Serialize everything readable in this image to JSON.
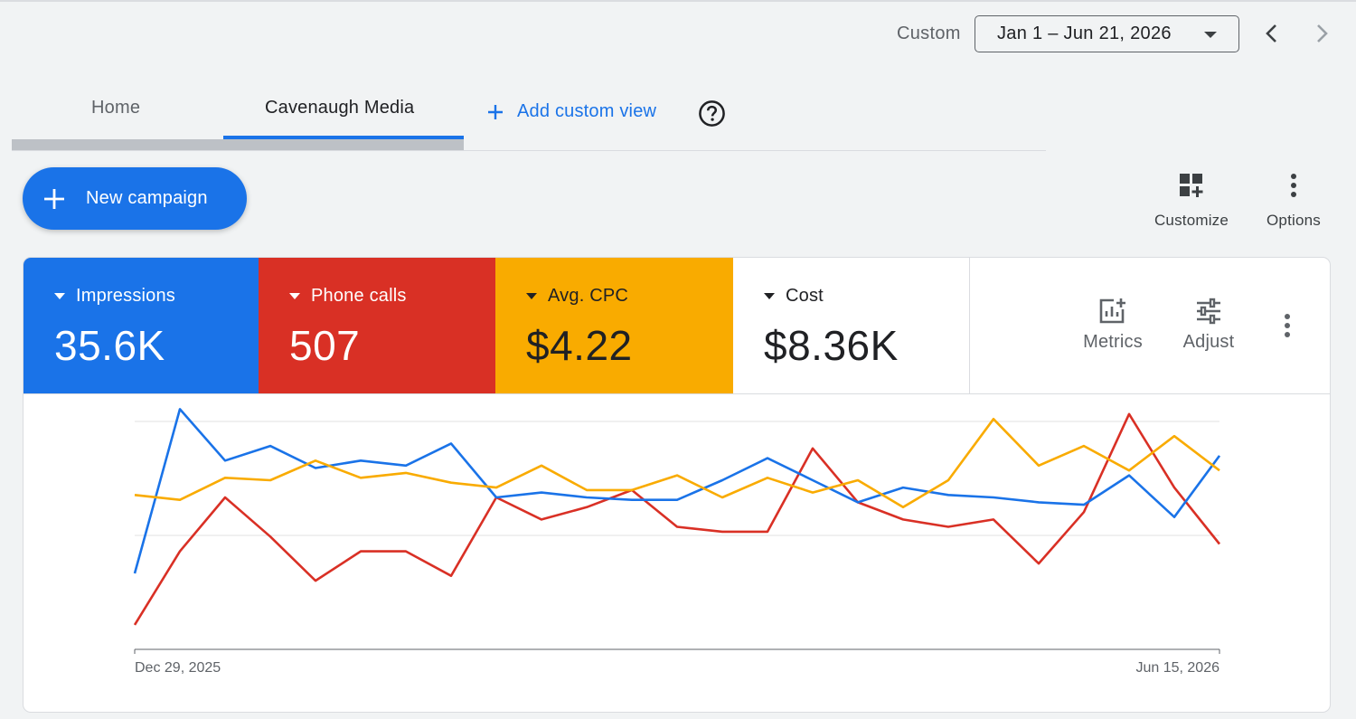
{
  "date_bar": {
    "label": "Custom",
    "range": "Jan 1 – Jun 21, 2026"
  },
  "tabs": [
    {
      "label": "Home"
    },
    {
      "label": "Cavenaugh Media"
    }
  ],
  "add_view_label": "Add custom view",
  "new_campaign_label": "New campaign",
  "toolbar": {
    "customize_label": "Customize",
    "options_label": "Options"
  },
  "scorecards": [
    {
      "name": "Impressions",
      "value": "35.6K",
      "color": "#1a73e8"
    },
    {
      "name": "Phone calls",
      "value": "507",
      "color": "#d93025"
    },
    {
      "name": "Avg. CPC",
      "value": "$4.22",
      "color": "#f9ab00"
    },
    {
      "name": "Cost",
      "value": "$8.36K",
      "color": "#ffffff"
    }
  ],
  "card_tools": {
    "metrics_label": "Metrics",
    "adjust_label": "Adjust"
  },
  "chart_data": {
    "type": "line",
    "x_start_label": "Dec 29, 2025",
    "x_end_label": "Jun 15, 2026",
    "grid": true,
    "ylim": [
      0,
      100
    ],
    "points_count": 25,
    "series": [
      {
        "color": "#1a73e8",
        "values": [
          31,
          98,
          77,
          83,
          74,
          77,
          75,
          84,
          62,
          64,
          62,
          61,
          61,
          69,
          78,
          69,
          60,
          66,
          63,
          62,
          60,
          59,
          71,
          54,
          79
        ]
      },
      {
        "color": "#d93025",
        "values": [
          10,
          40,
          62,
          46,
          28,
          40,
          40,
          30,
          62,
          53,
          58,
          65,
          50,
          48,
          48,
          82,
          60,
          53,
          50,
          53,
          35,
          56,
          96,
          66,
          43
        ]
      },
      {
        "color": "#f9ab00",
        "values": [
          63,
          61,
          70,
          69,
          77,
          70,
          72,
          68,
          66,
          75,
          65,
          65,
          71,
          62,
          70,
          64,
          69,
          58,
          69,
          94,
          75,
          83,
          73,
          87,
          73
        ]
      }
    ]
  }
}
